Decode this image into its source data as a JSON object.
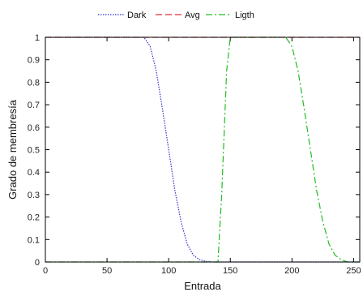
{
  "chart_data": {
    "type": "line",
    "xlabel": "Entrada",
    "ylabel": "Grado de membresía",
    "xlim": [
      0,
      255
    ],
    "ylim": [
      0,
      1
    ],
    "xticks": [
      0,
      50,
      100,
      150,
      200,
      250
    ],
    "yticks": [
      0,
      0.1,
      0.2,
      0.3,
      0.4,
      0.5,
      0.6,
      0.7,
      0.8,
      0.9,
      1
    ],
    "ytick_labels": [
      "0",
      "0.1",
      "0.2",
      "0.3",
      "0.4",
      "0.5",
      "0.6",
      "0.7",
      "0.8",
      "0.9",
      "1"
    ],
    "grid": false,
    "legend_position": "top",
    "series": [
      {
        "name": "Dark",
        "color": "#3333cc",
        "style": "dotted",
        "x": [
          0,
          80,
          85,
          90,
          95,
          100,
          105,
          110,
          115,
          120,
          125,
          130,
          135,
          140,
          255
        ],
        "values": [
          1,
          1,
          0.96,
          0.85,
          0.68,
          0.5,
          0.32,
          0.18,
          0.08,
          0.03,
          0.01,
          0.003,
          0,
          0,
          0
        ]
      },
      {
        "name": "Avg",
        "color": "#e03030",
        "style": "dashed",
        "x": [
          0,
          255
        ],
        "values": [
          1,
          1
        ]
      },
      {
        "name": "Ligth",
        "color": "#22bb22",
        "style": "dashdot",
        "x": [
          0,
          140,
          143,
          147,
          150,
          195,
          200,
          205,
          210,
          215,
          220,
          225,
          230,
          235,
          240,
          245,
          255
        ],
        "values": [
          0,
          0,
          0.3,
          0.85,
          1,
          1,
          0.96,
          0.85,
          0.68,
          0.5,
          0.32,
          0.18,
          0.08,
          0.03,
          0.01,
          0,
          0
        ]
      }
    ]
  }
}
